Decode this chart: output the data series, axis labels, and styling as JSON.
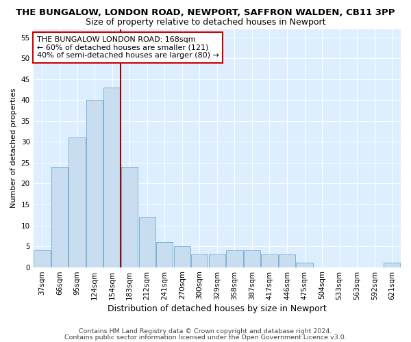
{
  "title": "THE BUNGALOW, LONDON ROAD, NEWPORT, SAFFRON WALDEN, CB11 3PP",
  "subtitle": "Size of property relative to detached houses in Newport",
  "xlabel": "Distribution of detached houses by size in Newport",
  "ylabel": "Number of detached properties",
  "categories": [
    "37sqm",
    "66sqm",
    "95sqm",
    "124sqm",
    "154sqm",
    "183sqm",
    "212sqm",
    "241sqm",
    "270sqm",
    "300sqm",
    "329sqm",
    "358sqm",
    "387sqm",
    "417sqm",
    "446sqm",
    "475sqm",
    "504sqm",
    "533sqm",
    "563sqm",
    "592sqm",
    "621sqm"
  ],
  "values": [
    4,
    24,
    31,
    40,
    43,
    24,
    12,
    6,
    5,
    3,
    3,
    4,
    4,
    3,
    3,
    1,
    0,
    0,
    0,
    0,
    1
  ],
  "bar_color": "#c8ddf0",
  "bar_edge_color": "#7ab4d8",
  "vline_x_idx": 5,
  "vline_color": "#aa0000",
  "annotation_text": "THE BUNGALOW LONDON ROAD: 168sqm\n← 60% of detached houses are smaller (121)\n40% of semi-detached houses are larger (80) →",
  "annotation_box_facecolor": "#ffffff",
  "annotation_box_edgecolor": "#cc0000",
  "ylim": [
    0,
    57
  ],
  "yticks": [
    0,
    5,
    10,
    15,
    20,
    25,
    30,
    35,
    40,
    45,
    50,
    55
  ],
  "footer1": "Contains HM Land Registry data © Crown copyright and database right 2024.",
  "footer2": "Contains public sector information licensed under the Open Government Licence v3.0.",
  "fig_bg_color": "#ffffff",
  "plot_bg_color": "#ddeeff",
  "grid_color": "#ffffff",
  "title_fontsize": 9.5,
  "subtitle_fontsize": 9,
  "xlabel_fontsize": 9,
  "ylabel_fontsize": 8,
  "tick_fontsize": 7.5,
  "annotation_fontsize": 8,
  "footer_fontsize": 6.8
}
